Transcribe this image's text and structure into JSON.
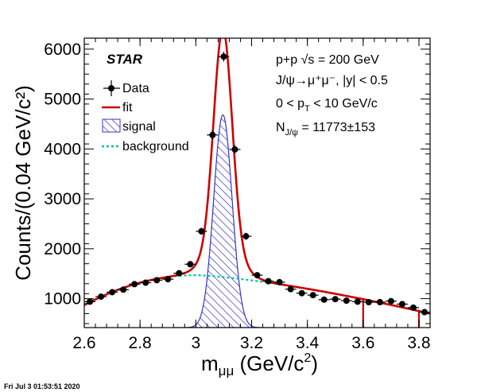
{
  "chart_data": {
    "type": "scatter",
    "xlim": [
      2.6,
      3.84
    ],
    "ylim": [
      420,
      6220
    ],
    "xticks": [
      2.6,
      2.8,
      3.0,
      3.2,
      3.4,
      3.6,
      3.8
    ],
    "xtick_labels": [
      "2.6",
      "2.8",
      "3",
      "3.2",
      "3.4",
      "3.6",
      "3.8"
    ],
    "yticks": [
      1000,
      2000,
      3000,
      4000,
      5000,
      6000
    ],
    "ytick_labels": [
      "1000",
      "2000",
      "3000",
      "4000",
      "5000",
      "6000"
    ],
    "xlabel": {
      "main": "m",
      "sub": "μμ",
      "rest": " (GeV/c",
      "sup": "2",
      "close": ")"
    },
    "ylabel": "Counts/(0.04 GeV/c²)",
    "star_label": "STAR",
    "info": {
      "line1": "p+p  √s = 200 GeV",
      "line2": "J/ψ→μ⁺μ⁻, |y| < 0.5",
      "line3_a": "0 < p",
      "line3_sub": "T",
      "line3_b": " < 10 GeV/c",
      "line4_a": "N",
      "line4_sub": "J/ψ",
      "line4_b": " = 11773±153"
    },
    "legend": [
      "Data",
      "fit",
      "signal",
      "background"
    ],
    "colors": {
      "data": "#000000",
      "fit": "#cc0000",
      "signal": "#3333cc",
      "background": "#00c29e"
    },
    "series": [
      {
        "name": "Data",
        "x": [
          2.62,
          2.66,
          2.7,
          2.74,
          2.78,
          2.82,
          2.86,
          2.9,
          2.94,
          2.98,
          3.02,
          3.06,
          3.1,
          3.14,
          3.18,
          3.22,
          3.26,
          3.3,
          3.34,
          3.38,
          3.42,
          3.46,
          3.5,
          3.54,
          3.58,
          3.62,
          3.66,
          3.7,
          3.74,
          3.78,
          3.82
        ],
        "y": [
          940,
          1040,
          1130,
          1180,
          1290,
          1320,
          1370,
          1390,
          1510,
          1690,
          2350,
          4280,
          5850,
          3990,
          2250,
          1470,
          1350,
          1330,
          1190,
          1110,
          1070,
          980,
          990,
          960,
          940,
          930,
          930,
          950,
          890,
          820,
          730
        ],
        "err": [
          55,
          55,
          55,
          55,
          55,
          55,
          55,
          55,
          55,
          60,
          70,
          90,
          100,
          85,
          70,
          55,
          55,
          55,
          55,
          55,
          55,
          55,
          55,
          55,
          55,
          55,
          55,
          55,
          55,
          55,
          55
        ]
      },
      {
        "name": "fit",
        "peak_mean": 3.097,
        "peak_sigma": 0.033,
        "bkg_peak": 1470,
        "bkg_center": 3.0,
        "bkg_left": 870,
        "bkg_right": 700,
        "right_edge_drops": [
          3.6,
          3.8
        ]
      },
      {
        "name": "signal",
        "mean": 3.097,
        "sigma": 0.033,
        "amplitude": 4350,
        "baseline": 420
      },
      {
        "name": "background",
        "center": 3.0,
        "peak": 1470,
        "at_2_6": 870,
        "at_3_84": 700
      }
    ]
  },
  "timestamp": "Fri Jul  3 01:53:51 2020"
}
